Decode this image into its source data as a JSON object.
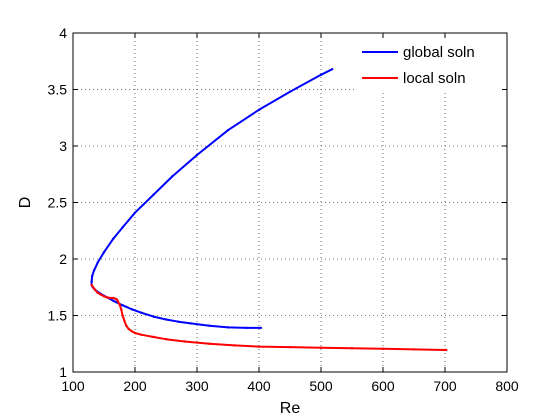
{
  "chart_data": {
    "type": "line",
    "title": "",
    "xlabel": "Re",
    "ylabel": "D",
    "xlim": [
      100,
      800
    ],
    "ylim": [
      1,
      4
    ],
    "xticks": [
      100,
      200,
      300,
      400,
      500,
      600,
      700,
      800
    ],
    "yticks": [
      1,
      1.5,
      2,
      2.5,
      3,
      3.5,
      4
    ],
    "xtick_labels": [
      "100",
      "200",
      "300",
      "400",
      "500",
      "600",
      "700",
      "800"
    ],
    "ytick_labels": [
      "1",
      "1.5",
      "2",
      "2.5",
      "3",
      "3.5",
      "4"
    ],
    "grid": true,
    "legend_position": "top-right",
    "series": [
      {
        "name": "global soln",
        "color": "#0000ff",
        "x": [
          403,
          380,
          350,
          320,
          290,
          270,
          250,
          230,
          210,
          195,
          180,
          165,
          155,
          145,
          137,
          132,
          130,
          130,
          131,
          134,
          140,
          150,
          165,
          180,
          200,
          230,
          260,
          300,
          350,
          400,
          450,
          500,
          518
        ],
        "y": [
          1.39,
          1.39,
          1.395,
          1.41,
          1.43,
          1.445,
          1.465,
          1.49,
          1.525,
          1.555,
          1.59,
          1.63,
          1.66,
          1.69,
          1.72,
          1.75,
          1.77,
          1.8,
          1.85,
          1.9,
          1.97,
          2.06,
          2.18,
          2.28,
          2.41,
          2.57,
          2.73,
          2.92,
          3.14,
          3.32,
          3.48,
          3.63,
          3.68
        ]
      },
      {
        "name": "local soln",
        "color": "#ff0000",
        "x": [
          130,
          135,
          140,
          145,
          150,
          155,
          160,
          165,
          170,
          172,
          175,
          178,
          180,
          183,
          186,
          190,
          195,
          200,
          210,
          230,
          250,
          280,
          320,
          360,
          400,
          450,
          500,
          550,
          600,
          650,
          700,
          702
        ],
        "y": [
          1.77,
          1.73,
          1.7,
          1.685,
          1.67,
          1.66,
          1.655,
          1.655,
          1.645,
          1.63,
          1.6,
          1.55,
          1.5,
          1.45,
          1.41,
          1.38,
          1.36,
          1.345,
          1.33,
          1.31,
          1.29,
          1.27,
          1.25,
          1.235,
          1.225,
          1.22,
          1.215,
          1.21,
          1.205,
          1.2,
          1.195,
          1.195
        ]
      }
    ]
  }
}
